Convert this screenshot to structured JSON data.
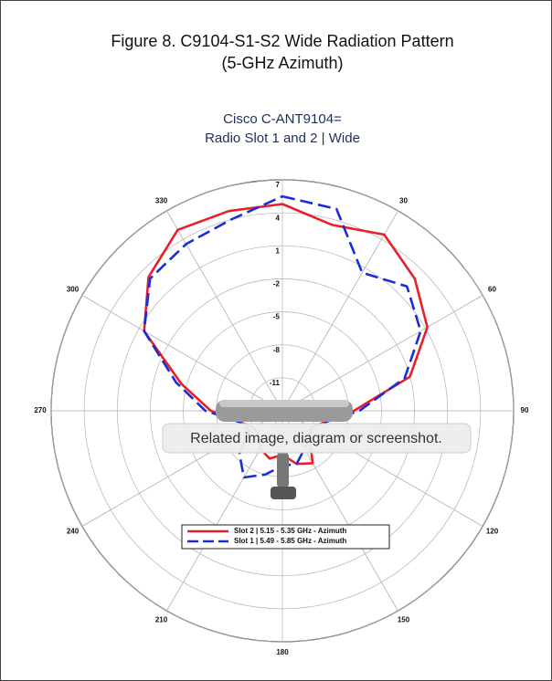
{
  "figure_title": [
    "Figure 8. C9104-S1-S2 Wide Radiation Pattern",
    "(5-GHz Azimuth)"
  ],
  "image_tooltip": "Related image, diagram or screenshot.",
  "chart_data": {
    "type": "polar",
    "title": [
      "Cisco C-ANT9104=",
      "Radio Slot 1 and 2 | Wide"
    ],
    "theta": [
      0,
      15,
      30,
      45,
      60,
      75,
      90,
      105,
      120,
      135,
      150,
      165,
      180,
      195,
      210,
      225,
      240,
      255,
      270,
      285,
      300,
      315,
      330,
      345
    ],
    "thetaticks": [
      30,
      60,
      90,
      120,
      150,
      180,
      210,
      240,
      270,
      300,
      330
    ],
    "direction": "clockwise",
    "zero": "top",
    "rlim": [
      -14,
      7
    ],
    "rticks": [
      7,
      4,
      1,
      -2,
      -5,
      -8,
      -11
    ],
    "grid": true,
    "series": [
      {
        "name": "Slot 2 | 5.15 - 5.35 GHz - Azimuth",
        "color": "#e8202a",
        "dashed": false,
        "values": [
          4.8,
          3.5,
          4.5,
          3.0,
          1.2,
          -2.0,
          -7.5,
          -10,
          -11,
          -10.5,
          -8.5,
          -9,
          -10,
          -9.5,
          -10,
          -11,
          -11,
          -10,
          -7.5,
          -4.5,
          0.5,
          3.2,
          5.0,
          4.8
        ]
      },
      {
        "name": "Slot 1 | 5.49 - 5.85 GHz - Azimuth",
        "color": "#1a2ed8",
        "dashed": true,
        "values": [
          5.5,
          5.0,
          0.5,
          2.0,
          0.5,
          -2.5,
          -7,
          -10,
          -11,
          -10.5,
          -10,
          -9,
          -9,
          -8,
          -7,
          -8.5,
          -10.5,
          -10,
          -7,
          -4.0,
          0.5,
          3.0,
          3.5,
          4.0
        ]
      }
    ]
  }
}
